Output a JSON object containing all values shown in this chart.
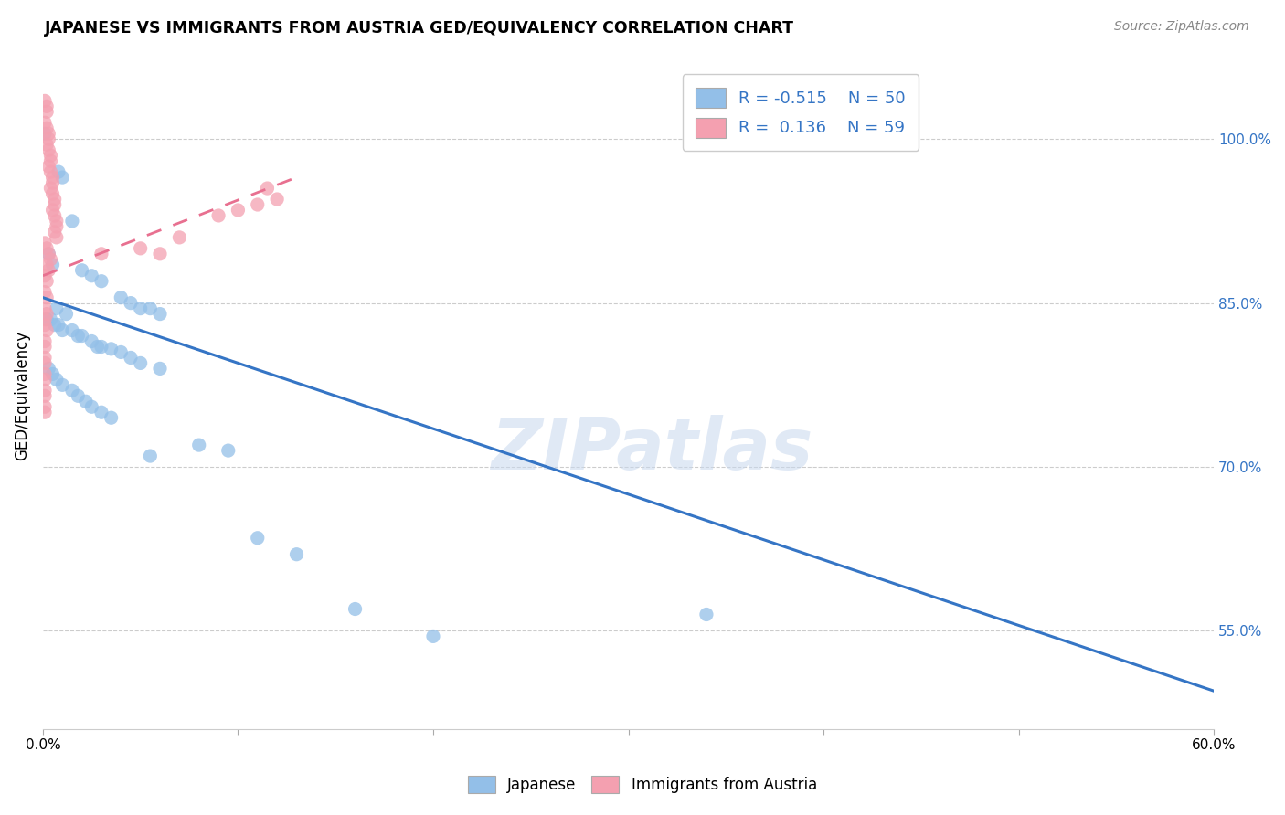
{
  "title": "JAPANESE VS IMMIGRANTS FROM AUSTRIA GED/EQUIVALENCY CORRELATION CHART",
  "source": "Source: ZipAtlas.com",
  "ylabel": "GED/Equivalency",
  "ytick_labels": [
    "100.0%",
    "85.0%",
    "70.0%",
    "55.0%"
  ],
  "ytick_values": [
    1.0,
    0.85,
    0.7,
    0.55
  ],
  "xmin": 0.0,
  "xmax": 0.6,
  "ymin": 0.46,
  "ymax": 1.07,
  "watermark": "ZIPatlas",
  "legend_japanese_R": "-0.515",
  "legend_japanese_N": "50",
  "legend_austria_R": "0.136",
  "legend_austria_N": "59",
  "japanese_color": "#93bfe8",
  "austria_color": "#f4a0b0",
  "japanese_line_color": "#3575c5",
  "austria_line_color": "#e87090",
  "jp_line_x0": 0.0,
  "jp_line_y0": 0.855,
  "jp_line_x1": 0.6,
  "jp_line_y1": 0.495,
  "at_line_x0": 0.0,
  "at_line_y0": 0.875,
  "at_line_x1": 0.13,
  "at_line_y1": 0.965,
  "japanese_dots": [
    [
      0.001,
      1.005
    ],
    [
      0.008,
      0.97
    ],
    [
      0.01,
      0.965
    ],
    [
      0.015,
      0.925
    ],
    [
      0.003,
      0.895
    ],
    [
      0.005,
      0.885
    ],
    [
      0.02,
      0.88
    ],
    [
      0.025,
      0.875
    ],
    [
      0.03,
      0.87
    ],
    [
      0.04,
      0.855
    ],
    [
      0.045,
      0.85
    ],
    [
      0.007,
      0.845
    ],
    [
      0.012,
      0.84
    ],
    [
      0.05,
      0.845
    ],
    [
      0.055,
      0.845
    ],
    [
      0.06,
      0.84
    ],
    [
      0.002,
      0.835
    ],
    [
      0.004,
      0.835
    ],
    [
      0.006,
      0.83
    ],
    [
      0.008,
      0.83
    ],
    [
      0.01,
      0.825
    ],
    [
      0.015,
      0.825
    ],
    [
      0.018,
      0.82
    ],
    [
      0.02,
      0.82
    ],
    [
      0.025,
      0.815
    ],
    [
      0.028,
      0.81
    ],
    [
      0.03,
      0.81
    ],
    [
      0.035,
      0.808
    ],
    [
      0.04,
      0.805
    ],
    [
      0.045,
      0.8
    ],
    [
      0.05,
      0.795
    ],
    [
      0.06,
      0.79
    ],
    [
      0.003,
      0.79
    ],
    [
      0.005,
      0.785
    ],
    [
      0.007,
      0.78
    ],
    [
      0.01,
      0.775
    ],
    [
      0.015,
      0.77
    ],
    [
      0.018,
      0.765
    ],
    [
      0.022,
      0.76
    ],
    [
      0.025,
      0.755
    ],
    [
      0.03,
      0.75
    ],
    [
      0.035,
      0.745
    ],
    [
      0.055,
      0.71
    ],
    [
      0.08,
      0.72
    ],
    [
      0.095,
      0.715
    ],
    [
      0.11,
      0.635
    ],
    [
      0.13,
      0.62
    ],
    [
      0.16,
      0.57
    ],
    [
      0.2,
      0.545
    ],
    [
      0.34,
      0.565
    ]
  ],
  "austria_dots": [
    [
      0.001,
      1.035
    ],
    [
      0.002,
      1.03
    ],
    [
      0.002,
      1.025
    ],
    [
      0.001,
      1.015
    ],
    [
      0.002,
      1.01
    ],
    [
      0.003,
      1.005
    ],
    [
      0.003,
      1.0
    ],
    [
      0.002,
      0.995
    ],
    [
      0.003,
      0.99
    ],
    [
      0.004,
      0.985
    ],
    [
      0.004,
      0.98
    ],
    [
      0.003,
      0.975
    ],
    [
      0.004,
      0.97
    ],
    [
      0.005,
      0.965
    ],
    [
      0.005,
      0.96
    ],
    [
      0.004,
      0.955
    ],
    [
      0.005,
      0.95
    ],
    [
      0.006,
      0.945
    ],
    [
      0.006,
      0.94
    ],
    [
      0.005,
      0.935
    ],
    [
      0.006,
      0.93
    ],
    [
      0.007,
      0.925
    ],
    [
      0.007,
      0.92
    ],
    [
      0.006,
      0.915
    ],
    [
      0.007,
      0.91
    ],
    [
      0.001,
      0.905
    ],
    [
      0.002,
      0.9
    ],
    [
      0.003,
      0.895
    ],
    [
      0.004,
      0.89
    ],
    [
      0.002,
      0.885
    ],
    [
      0.003,
      0.88
    ],
    [
      0.001,
      0.875
    ],
    [
      0.002,
      0.87
    ],
    [
      0.001,
      0.86
    ],
    [
      0.002,
      0.855
    ],
    [
      0.001,
      0.845
    ],
    [
      0.002,
      0.84
    ],
    [
      0.001,
      0.83
    ],
    [
      0.002,
      0.825
    ],
    [
      0.001,
      0.815
    ],
    [
      0.001,
      0.81
    ],
    [
      0.001,
      0.8
    ],
    [
      0.001,
      0.795
    ],
    [
      0.001,
      0.785
    ],
    [
      0.001,
      0.78
    ],
    [
      0.001,
      0.77
    ],
    [
      0.001,
      0.765
    ],
    [
      0.001,
      0.755
    ],
    [
      0.001,
      0.75
    ],
    [
      0.03,
      0.895
    ],
    [
      0.05,
      0.9
    ],
    [
      0.06,
      0.895
    ],
    [
      0.001,
      0.835
    ],
    [
      0.07,
      0.91
    ],
    [
      0.09,
      0.93
    ],
    [
      0.1,
      0.935
    ],
    [
      0.11,
      0.94
    ],
    [
      0.12,
      0.945
    ],
    [
      0.115,
      0.955
    ]
  ]
}
